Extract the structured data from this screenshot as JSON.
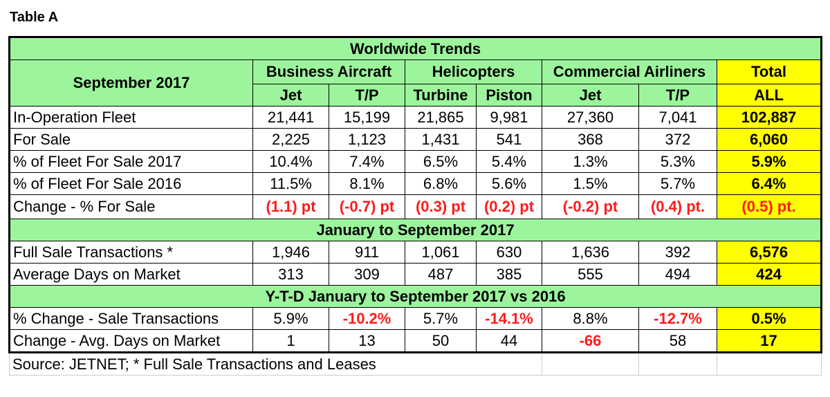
{
  "caption": "Table A",
  "title": "Worldwide Trends",
  "period_label": "September 2017",
  "groups": {
    "business": "Business Aircraft",
    "heli": "Helicopters",
    "commercial": "Commercial Airliners",
    "total": "Total"
  },
  "subheaders": [
    "Jet",
    "T/P",
    "Turbine",
    "Piston",
    "Jet",
    "T/P",
    "ALL"
  ],
  "section1_rows": [
    {
      "label": "In-Operation Fleet",
      "values": [
        "21,441",
        "15,199",
        "21,865",
        "9,981",
        "27,360",
        "7,041"
      ],
      "total": "102,887"
    },
    {
      "label": "For Sale",
      "values": [
        "2,225",
        "1,123",
        "1,431",
        "541",
        "368",
        "372"
      ],
      "total": "6,060"
    },
    {
      "label": "% of Fleet For Sale 2017",
      "values": [
        "10.4%",
        "7.4%",
        "6.5%",
        "5.4%",
        "1.3%",
        "5.3%"
      ],
      "total": "5.9%"
    },
    {
      "label": "% of Fleet For Sale 2016",
      "values": [
        "11.5%",
        "8.1%",
        "6.8%",
        "5.6%",
        "1.5%",
        "5.7%"
      ],
      "total": "6.4%"
    },
    {
      "label": "Change - % For Sale",
      "values": [
        "(1.1) pt",
        "(-0.7) pt",
        "(0.3) pt",
        "(0.2) pt",
        "(-0.2) pt",
        "(0.4) pt."
      ],
      "total": "(0.5) pt."
    }
  ],
  "section2_title": "January to September 2017",
  "section2_rows": [
    {
      "label": "Full Sale Transactions *",
      "values": [
        "1,946",
        "911",
        "1,061",
        "630",
        "1,636",
        "392"
      ],
      "total": "6,576"
    },
    {
      "label": "Average Days on Market",
      "values": [
        "313",
        "309",
        "487",
        "385",
        "555",
        "494"
      ],
      "total": "424"
    }
  ],
  "section3_title": "Y-T-D January to September 2017 vs 2016",
  "section3_rows": [
    {
      "label": "% Change  - Sale Transactions",
      "values": [
        "5.9%",
        "-10.2%",
        "5.7%",
        "-14.1%",
        "8.8%",
        "-12.7%"
      ],
      "total": "0.5%"
    },
    {
      "label": "Change -  Avg. Days on Market",
      "values": [
        "1",
        "13",
        "50",
        "44",
        "-66",
        "58"
      ],
      "total": "17"
    }
  ],
  "source": "Source: JETNET; * Full Sale Transactions and Leases",
  "colors": {
    "green": "#9cf59c",
    "yellow": "#ffff00",
    "negative_red": "#ff1a1a"
  }
}
